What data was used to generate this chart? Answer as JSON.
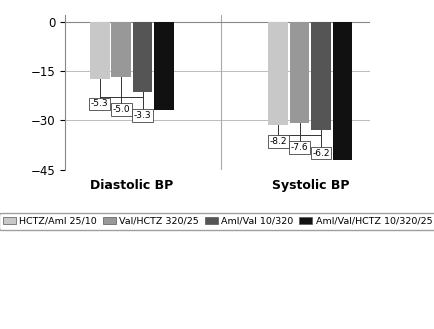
{
  "groups": [
    "Diastolic BP",
    "Systolic BP"
  ],
  "series": [
    {
      "label": "HCTZ/Aml 25/10",
      "color": "#c8c8c8",
      "values": [
        -17.5,
        -31.5
      ]
    },
    {
      "label": "Val/HCTZ 320/25",
      "color": "#989898",
      "values": [
        -17.0,
        -30.8
      ]
    },
    {
      "label": "Aml/Val 10/320",
      "color": "#555555",
      "values": [
        -21.5,
        -33.0
      ]
    },
    {
      "label": "Aml/Val/HCTZ 10/320/25",
      "color": "#111111",
      "values": [
        -27.0,
        -42.0
      ]
    }
  ],
  "annotations_diastolic": [
    {
      "text": "-5.3",
      "bar_idx": 0
    },
    {
      "text": "-5.0",
      "bar_idx": 1
    },
    {
      "text": "-3.3",
      "bar_idx": 2
    }
  ],
  "annotations_systolic": [
    {
      "text": "-8.2",
      "bar_idx": 0
    },
    {
      "text": "-7.6",
      "bar_idx": 1
    },
    {
      "text": "-6.2",
      "bar_idx": 2
    }
  ],
  "ylim": [
    -45,
    2
  ],
  "yticks": [
    0,
    -15,
    -30,
    -45
  ],
  "bar_width": 0.055,
  "background_color": "#ffffff",
  "grid_color": "#bbbbbb",
  "annotation_box_color": "#ffffff",
  "annotation_box_edge": "#444444",
  "annotation_fontsize": 6.5,
  "axis_label_fontsize": 9,
  "legend_fontsize": 6.8
}
